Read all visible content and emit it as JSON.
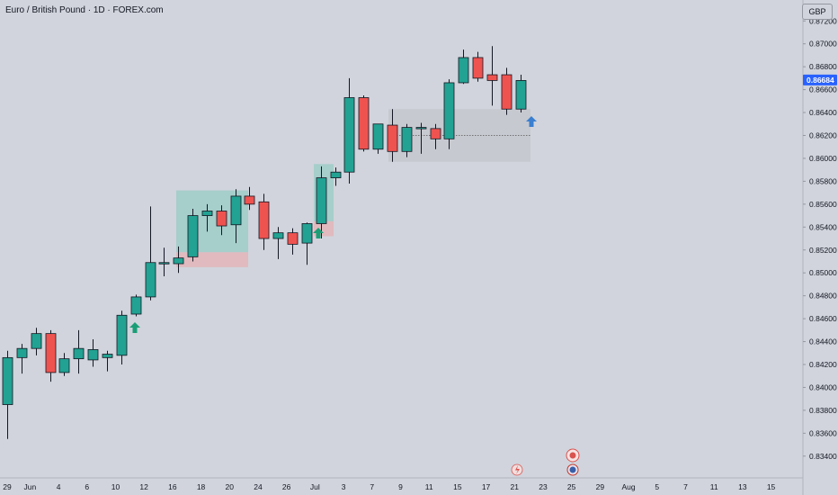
{
  "header": {
    "title": "Euro / British Pound · 1D · FOREX.com",
    "currency": "GBP"
  },
  "colors": {
    "background": "#d1d4dc",
    "up": "#22a292",
    "down": "#ef5350",
    "wick": "#131722",
    "price_badge": "#2962ff",
    "arrow_green": "#1b9e77",
    "arrow_blue": "#3a7fd0",
    "long_zone": "#9fcdc8",
    "stop_zone": "#e1b7ba",
    "range_box": "#c4c6cd"
  },
  "chart_data": {
    "type": "candlestick",
    "symbol": "Euro / British Pound",
    "timeframe": "1D",
    "source": "FOREX.com",
    "y_ticks": [
      "0.87200",
      "0.87000",
      "0.86800",
      "0.86600",
      "0.86400",
      "0.86200",
      "0.86000",
      "0.85800",
      "0.85600",
      "0.85400",
      "0.85200",
      "0.85000",
      "0.84800",
      "0.84600",
      "0.84400",
      "0.84200",
      "0.84000",
      "0.83800",
      "0.83600",
      "0.83400"
    ],
    "x_ticks": [
      "29",
      "Jun",
      "4",
      "6",
      "10",
      "12",
      "16",
      "18",
      "20",
      "24",
      "26",
      "Jul",
      "3",
      "7",
      "9",
      "11",
      "15",
      "17",
      "21",
      "23",
      "25",
      "29",
      "Aug",
      "5",
      "7",
      "11",
      "13",
      "15"
    ],
    "current_price": "0.86684",
    "candles": [
      {
        "date": "May 29",
        "o": 0.8385,
        "h": 0.8432,
        "l": 0.8355,
        "c": 0.8426
      },
      {
        "date": "May 30",
        "o": 0.8426,
        "h": 0.8438,
        "l": 0.8412,
        "c": 0.8434
      },
      {
        "date": "Jun 2",
        "o": 0.8434,
        "h": 0.8452,
        "l": 0.8428,
        "c": 0.8447
      },
      {
        "date": "Jun 3",
        "o": 0.8447,
        "h": 0.845,
        "l": 0.8405,
        "c": 0.8413
      },
      {
        "date": "Jun 4",
        "o": 0.8413,
        "h": 0.843,
        "l": 0.841,
        "c": 0.8425
      },
      {
        "date": "Jun 5",
        "o": 0.8425,
        "h": 0.845,
        "l": 0.8412,
        "c": 0.8434
      },
      {
        "date": "Jun 6",
        "o": 0.8424,
        "h": 0.8442,
        "l": 0.8418,
        "c": 0.8433
      },
      {
        "date": "Jun 9",
        "o": 0.8426,
        "h": 0.8432,
        "l": 0.8414,
        "c": 0.8429
      },
      {
        "date": "Jun 10",
        "o": 0.8428,
        "h": 0.8467,
        "l": 0.842,
        "c": 0.8463
      },
      {
        "date": "Jun 11",
        "o": 0.8464,
        "h": 0.8481,
        "l": 0.8462,
        "c": 0.8479
      },
      {
        "date": "Jun 12",
        "o": 0.8479,
        "h": 0.8558,
        "l": 0.8476,
        "c": 0.8509
      },
      {
        "date": "Jun 13",
        "o": 0.8509,
        "h": 0.8522,
        "l": 0.8497,
        "c": 0.8509
      },
      {
        "date": "Jun 16",
        "o": 0.8508,
        "h": 0.8523,
        "l": 0.85,
        "c": 0.8513
      },
      {
        "date": "Jun 17",
        "o": 0.8514,
        "h": 0.8556,
        "l": 0.851,
        "c": 0.855
      },
      {
        "date": "Jun 18",
        "o": 0.855,
        "h": 0.856,
        "l": 0.8536,
        "c": 0.8554
      },
      {
        "date": "Jun 19",
        "o": 0.8554,
        "h": 0.8559,
        "l": 0.8533,
        "c": 0.8541
      },
      {
        "date": "Jun 20",
        "o": 0.8542,
        "h": 0.8573,
        "l": 0.8526,
        "c": 0.8567
      },
      {
        "date": "Jun 23",
        "o": 0.8567,
        "h": 0.8575,
        "l": 0.8555,
        "c": 0.856
      },
      {
        "date": "Jun 24",
        "o": 0.8562,
        "h": 0.8569,
        "l": 0.852,
        "c": 0.853
      },
      {
        "date": "Jun 25",
        "o": 0.853,
        "h": 0.854,
        "l": 0.8512,
        "c": 0.8535
      },
      {
        "date": "Jun 26",
        "o": 0.8535,
        "h": 0.8539,
        "l": 0.8516,
        "c": 0.8525
      },
      {
        "date": "Jun 27",
        "o": 0.8526,
        "h": 0.8544,
        "l": 0.8507,
        "c": 0.8543
      },
      {
        "date": "Jun 30",
        "o": 0.8543,
        "h": 0.8593,
        "l": 0.853,
        "c": 0.8583
      },
      {
        "date": "Jul 1",
        "o": 0.8583,
        "h": 0.8592,
        "l": 0.8576,
        "c": 0.8588
      },
      {
        "date": "Jul 2",
        "o": 0.8588,
        "h": 0.867,
        "l": 0.8578,
        "c": 0.8653
      },
      {
        "date": "Jul 3",
        "o": 0.8653,
        "h": 0.8655,
        "l": 0.8606,
        "c": 0.8608
      },
      {
        "date": "Jul 4",
        "o": 0.8608,
        "h": 0.863,
        "l": 0.8604,
        "c": 0.863
      },
      {
        "date": "Jul 7",
        "o": 0.8629,
        "h": 0.8643,
        "l": 0.8597,
        "c": 0.8606
      },
      {
        "date": "Jul 8",
        "o": 0.8606,
        "h": 0.863,
        "l": 0.8601,
        "c": 0.8627
      },
      {
        "date": "Jul 9",
        "o": 0.8627,
        "h": 0.8631,
        "l": 0.8604,
        "c": 0.8627
      },
      {
        "date": "Jul 10",
        "o": 0.8626,
        "h": 0.863,
        "l": 0.8608,
        "c": 0.8617
      },
      {
        "date": "Jul 11",
        "o": 0.8617,
        "h": 0.8669,
        "l": 0.8608,
        "c": 0.8666
      },
      {
        "date": "Jul 14",
        "o": 0.8666,
        "h": 0.8695,
        "l": 0.8665,
        "c": 0.8688
      },
      {
        "date": "Jul 15",
        "o": 0.8688,
        "h": 0.8693,
        "l": 0.8667,
        "c": 0.867
      },
      {
        "date": "Jul 16",
        "o": 0.8673,
        "h": 0.8698,
        "l": 0.8646,
        "c": 0.8668
      },
      {
        "date": "Jul 17",
        "o": 0.8673,
        "h": 0.8679,
        "l": 0.8638,
        "c": 0.8643
      },
      {
        "date": "Jul 18",
        "o": 0.8643,
        "h": 0.8673,
        "l": 0.864,
        "c": 0.8668
      }
    ]
  }
}
